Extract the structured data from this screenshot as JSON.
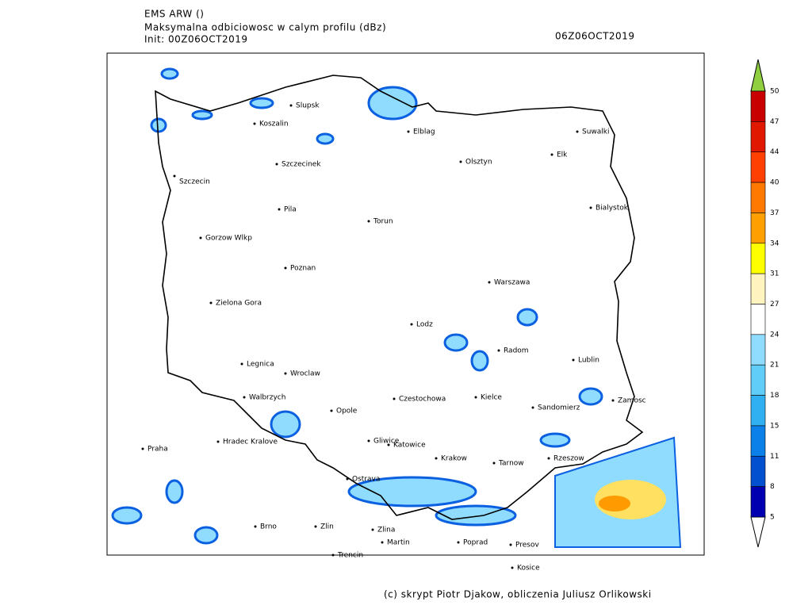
{
  "header": {
    "model": "EMS ARW ()",
    "title": "Maksymalna odbiciowosc w calym profilu (dBz)",
    "init": "Init: 00Z06OCT2019",
    "valid": "06Z06OCT2019"
  },
  "cities": [
    "Slupsk",
    "Koszalin",
    "Elblag",
    "Suwalki",
    "Elk",
    "Olsztyn",
    "Szczecinek",
    "Szczecin",
    "Pila",
    "Bialystok",
    "Torun",
    "Gorzow Wlkp",
    "Poznan",
    "Warszawa",
    "Zielona Gora",
    "Lodz",
    "Radom",
    "Lublin",
    "Legnica",
    "Wroclaw",
    "Walbrzych",
    "Czestochowa",
    "Kielce",
    "Sandomierz",
    "Zamosc",
    "Opole",
    "Praha",
    "Hradec Kralove",
    "Gliwice",
    "Katowice",
    "Krakow",
    "Tarnow",
    "Rzeszow",
    "Ostrava",
    "Brno",
    "Zlin",
    "Zlina",
    "Martin",
    "Poprad",
    "Presov",
    "Trencin",
    "Kosice"
  ],
  "colorbar": {
    "ticks": [
      50,
      47,
      44,
      40,
      37,
      34,
      31,
      27,
      24,
      21,
      18,
      15,
      11,
      8,
      5
    ],
    "colors": [
      "#c80000",
      "#e01800",
      "#ff4000",
      "#ff7800",
      "#ffa000",
      "#ffff00",
      "#fff4c0",
      "#ffffff",
      "#90dcff",
      "#60cdf8",
      "#30b0f0",
      "#0a80e8",
      "#0050d0",
      "#0000b0"
    ],
    "over_color": "#90d040",
    "under_color": "#ffffff"
  },
  "footer": "(c) skrypt Piotr Djakow, obliczenia Juliusz Orlikowski"
}
